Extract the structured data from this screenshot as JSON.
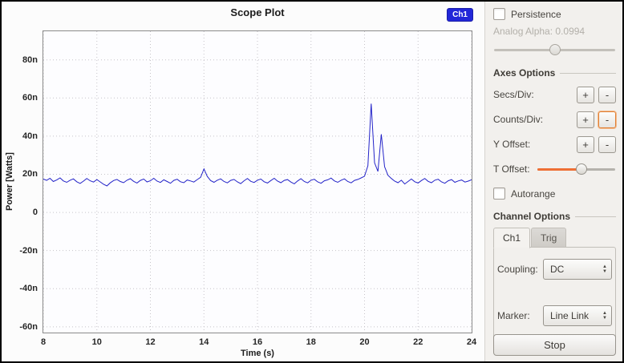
{
  "plot": {
    "title": "Scope Plot",
    "legend_label": "Ch1",
    "legend_color": "#2227d8",
    "x_label": "Time (s)",
    "y_label": "Power [Watts]"
  },
  "chart_data": {
    "type": "line",
    "title": "Scope Plot",
    "xlabel": "Time (s)",
    "ylabel": "Power [Watts]",
    "xlim": [
      8,
      24
    ],
    "ylim": [
      -63,
      95
    ],
    "x_ticks": [
      8,
      10,
      12,
      14,
      16,
      18,
      20,
      22,
      24
    ],
    "y_ticks": [
      {
        "v": 80,
        "label": "80n"
      },
      {
        "v": 60,
        "label": "60n"
      },
      {
        "v": 40,
        "label": "40n"
      },
      {
        "v": 20,
        "label": "20n"
      },
      {
        "v": 0,
        "label": "0"
      },
      {
        "v": -20,
        "label": "-20n"
      },
      {
        "v": -40,
        "label": "-40n"
      },
      {
        "v": -60,
        "label": "-60n"
      }
    ],
    "y_unit": "nano-Watts",
    "grid": true,
    "legend_position": "top-right",
    "series": [
      {
        "name": "Ch1",
        "color": "#2323c8",
        "x_start": 8,
        "x_step": 0.125,
        "y": [
          17.5,
          16.8,
          17.9,
          16.2,
          17.0,
          18.1,
          16.5,
          15.8,
          16.9,
          17.6,
          16.1,
          15.2,
          16.4,
          17.8,
          16.6,
          15.9,
          17.2,
          16.0,
          14.8,
          13.9,
          15.5,
          16.7,
          17.3,
          16.2,
          15.6,
          16.9,
          17.7,
          16.3,
          15.4,
          16.8,
          17.5,
          16.0,
          16.6,
          17.9,
          16.4,
          15.7,
          17.1,
          16.2,
          15.3,
          16.8,
          17.4,
          16.1,
          15.6,
          17.0,
          16.5,
          15.9,
          17.2,
          18.4,
          22.8,
          18.9,
          16.7,
          15.8,
          16.9,
          17.6,
          16.2,
          15.5,
          16.8,
          17.3,
          16.0,
          15.1,
          16.6,
          17.8,
          16.3,
          15.7,
          16.9,
          17.5,
          16.1,
          15.4,
          16.7,
          17.9,
          16.4,
          15.6,
          16.8,
          17.2,
          15.9,
          15.0,
          16.5,
          17.7,
          16.2,
          15.5,
          16.9,
          17.4,
          16.0,
          15.3,
          16.6,
          17.1,
          18.0,
          16.5,
          15.8,
          16.9,
          17.6,
          16.2,
          15.5,
          16.8,
          17.3,
          18.1,
          19.0,
          24.5,
          57.0,
          26.0,
          21.5,
          41.0,
          24.0,
          19.5,
          17.8,
          16.4,
          15.6,
          16.9,
          14.9,
          16.2,
          17.5,
          16.1,
          15.4,
          16.7,
          17.8,
          16.3,
          15.6,
          16.9,
          17.4,
          16.0,
          15.3,
          16.6,
          17.2,
          15.8,
          16.5,
          17.0,
          15.9,
          16.4,
          17.1
        ]
      }
    ]
  },
  "controls": {
    "persistence": {
      "label": "Persistence",
      "checked": false
    },
    "analog_alpha": {
      "label": "Analog Alpha: 0.0994",
      "value": 0.0994,
      "enabled": false,
      "slider_pos": 50
    },
    "axes_heading": "Axes Options",
    "axes_rows": [
      {
        "label": "Secs/Div:",
        "plus": "+",
        "minus": "-"
      },
      {
        "label": "Counts/Div:",
        "plus": "+",
        "minus": "-",
        "minus_focused": true
      },
      {
        "label": "Y Offset:",
        "plus": "+",
        "minus": "-"
      }
    ],
    "t_offset": {
      "label": "T Offset:",
      "slider_pos": 57
    },
    "autorange": {
      "label": "Autorange",
      "checked": false
    },
    "channel_heading": "Channel Options",
    "tabs": [
      {
        "label": "Ch1",
        "active": true
      },
      {
        "label": "Trig",
        "active": false
      }
    ],
    "coupling": {
      "label": "Coupling:",
      "value": "DC"
    },
    "marker": {
      "label": "Marker:",
      "value": "Line Link"
    },
    "stop_label": "Stop"
  }
}
